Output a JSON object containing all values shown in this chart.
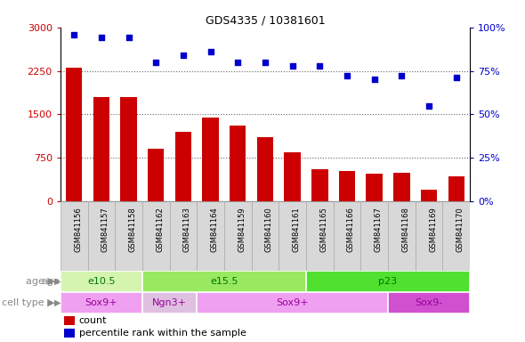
{
  "title": "GDS4335 / 10381601",
  "samples": [
    "GSM841156",
    "GSM841157",
    "GSM841158",
    "GSM841162",
    "GSM841163",
    "GSM841164",
    "GSM841159",
    "GSM841160",
    "GSM841161",
    "GSM841165",
    "GSM841166",
    "GSM841167",
    "GSM841168",
    "GSM841169",
    "GSM841170"
  ],
  "counts": [
    2300,
    1800,
    1800,
    900,
    1200,
    1450,
    1300,
    1100,
    850,
    560,
    520,
    480,
    490,
    200,
    430
  ],
  "percentiles": [
    96,
    94,
    94,
    80,
    84,
    86,
    80,
    80,
    78,
    78,
    72,
    70,
    72,
    55,
    71
  ],
  "age_groups": [
    {
      "label": "e10.5",
      "start": 0,
      "end": 3,
      "color": "#d4f4b0"
    },
    {
      "label": "e15.5",
      "start": 3,
      "end": 9,
      "color": "#98e860"
    },
    {
      "label": "p23",
      "start": 9,
      "end": 15,
      "color": "#50e030"
    }
  ],
  "cell_groups": [
    {
      "label": "Sox9+",
      "start": 0,
      "end": 3,
      "color": "#f0a0f0"
    },
    {
      "label": "Ngn3+",
      "start": 3,
      "end": 5,
      "color": "#e0c0e0"
    },
    {
      "label": "Sox9+",
      "start": 5,
      "end": 12,
      "color": "#f0a0f0"
    },
    {
      "label": "Sox9-",
      "start": 12,
      "end": 15,
      "color": "#d050d0"
    }
  ],
  "bar_color": "#cc0000",
  "scatter_color": "#0000cc",
  "left_yticks": [
    0,
    750,
    1500,
    2250,
    3000
  ],
  "right_yticks": [
    0,
    25,
    50,
    75,
    100
  ],
  "right_ylabels": [
    "0",
    "25",
    "50",
    "75",
    "100%"
  ],
  "ylabel_left_color": "#cc0000",
  "ylabel_right_color": "#0000cc",
  "grid_color": "#666666",
  "age_label_color": "#007700",
  "cell_label_color": "#990099",
  "label_color": "#888888",
  "ticklabel_gray_bg": "#d8d8d8",
  "ticklabel_bg_edge": "#aaaaaa"
}
